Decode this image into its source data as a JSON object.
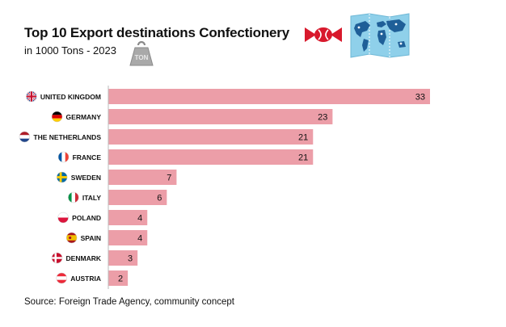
{
  "header": {
    "title": "Top 10 Export destinations Confectionery",
    "subtitle": "in 1000 Tons - 2023",
    "weight_label": "TON"
  },
  "footer": {
    "source": "Source: Foreign Trade Agency, community concept"
  },
  "colors": {
    "bar": "#ec9ea8",
    "text": "#111111",
    "candy": "#d8192c",
    "map_water": "#8fd0ea",
    "map_land": "#1f5f98"
  },
  "icons": [
    "weight-icon",
    "candy-icon",
    "world-map-icon"
  ],
  "chart_data": {
    "type": "bar",
    "orientation": "horizontal",
    "title": "Top 10 Export destinations Confectionery",
    "subtitle": "in 1000 Tons - 2023",
    "categories": [
      "UNITED KINGDOM",
      "GERMANY",
      "THE NETHERLANDS",
      "FRANCE",
      "SWEDEN",
      "ITALY",
      "POLAND",
      "SPAIN",
      "DENMARK",
      "AUSTRIA"
    ],
    "values": [
      33,
      23,
      21,
      21,
      7,
      6,
      4,
      4,
      3,
      2
    ],
    "data_labels": [
      "33",
      "23",
      "21",
      "21",
      "7",
      "6",
      "4",
      "4",
      "3",
      "2"
    ],
    "flag_icons": [
      "uk-flag-icon",
      "germany-flag-icon",
      "netherlands-flag-icon",
      "france-flag-icon",
      "sweden-flag-icon",
      "italy-flag-icon",
      "poland-flag-icon",
      "spain-flag-icon",
      "denmark-flag-icon",
      "austria-flag-icon"
    ],
    "xlim": [
      0,
      33
    ],
    "grid": false,
    "legend": "none",
    "axis_line": "left"
  }
}
